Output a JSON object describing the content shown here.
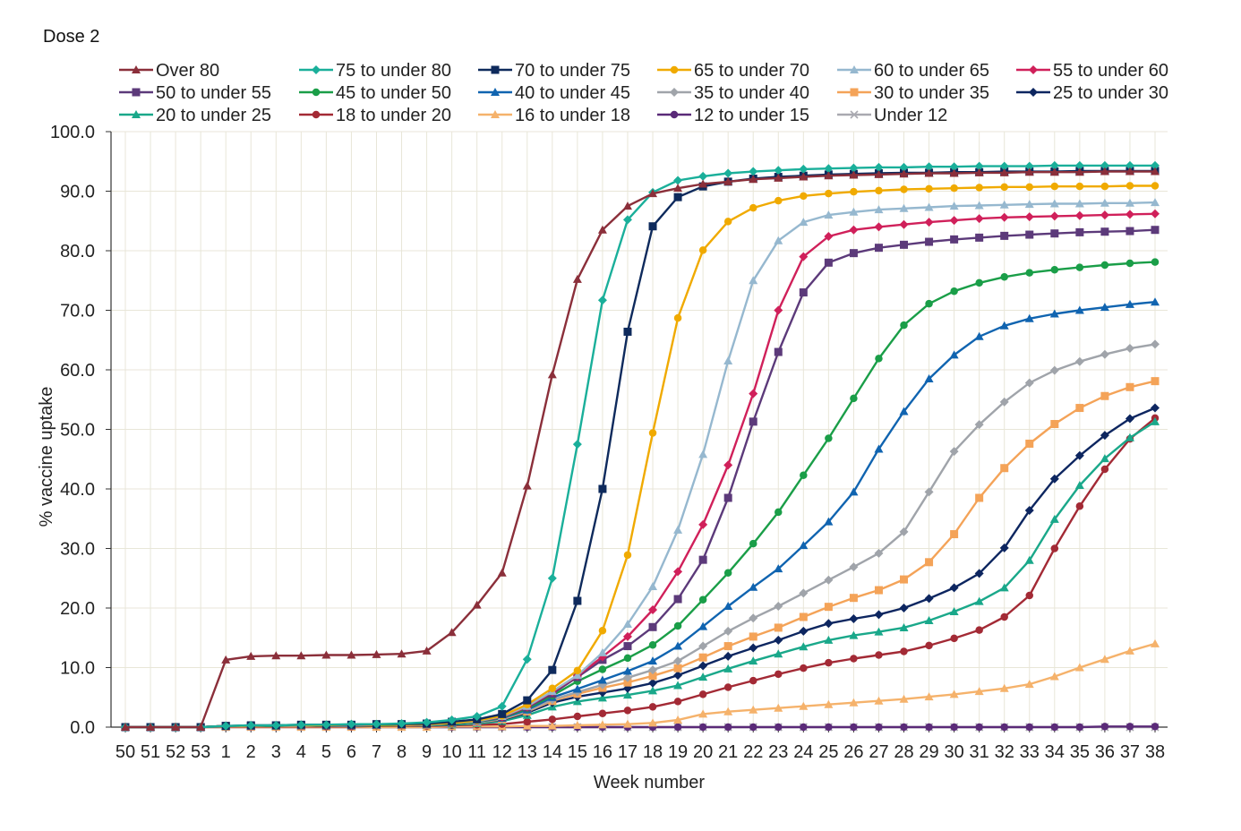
{
  "chart_data": {
    "type": "line",
    "title": "Dose 2",
    "xlabel": "Week number",
    "ylabel": "% vaccine uptake",
    "ylim": [
      0,
      100
    ],
    "yticks": [
      "0.0",
      "10.0",
      "20.0",
      "30.0",
      "40.0",
      "50.0",
      "60.0",
      "70.0",
      "80.0",
      "90.0",
      "100.0"
    ],
    "grid": true,
    "legend_position": "top",
    "categories": [
      "50",
      "51",
      "52",
      "53",
      "1",
      "2",
      "3",
      "4",
      "5",
      "6",
      "7",
      "8",
      "9",
      "10",
      "11",
      "12",
      "13",
      "14",
      "15",
      "16",
      "17",
      "18",
      "19",
      "20",
      "21",
      "22",
      "23",
      "24",
      "25",
      "26",
      "27",
      "28",
      "29",
      "30",
      "31",
      "32",
      "33",
      "34",
      "35",
      "36",
      "37",
      "38"
    ],
    "series": [
      {
        "name": "Over 80",
        "color": "#8b2f3a",
        "marker": "triangle",
        "values": [
          0,
          0,
          0,
          0,
          11.3,
          11.9,
          12.0,
          12.0,
          12.1,
          12.1,
          12.2,
          12.3,
          12.8,
          15.9,
          20.5,
          25.9,
          40.5,
          59.2,
          75.2,
          83.5,
          87.5,
          89.6,
          90.5,
          91.2,
          91.6,
          92.0,
          92.2,
          92.4,
          92.6,
          92.7,
          92.8,
          92.9,
          93.0,
          93.0,
          93.1,
          93.1,
          93.2,
          93.2,
          93.2,
          93.3,
          93.3,
          93.3
        ]
      },
      {
        "name": "75 to under 80",
        "color": "#1aaf9a",
        "marker": "diamond",
        "values": [
          0,
          0,
          0,
          0,
          0.2,
          0.3,
          0.3,
          0.4,
          0.4,
          0.5,
          0.5,
          0.6,
          0.8,
          1.2,
          1.8,
          3.5,
          11.4,
          25.0,
          47.5,
          71.7,
          85.2,
          89.8,
          91.8,
          92.5,
          93.0,
          93.3,
          93.5,
          93.7,
          93.8,
          93.9,
          94.0,
          94.0,
          94.1,
          94.1,
          94.2,
          94.2,
          94.2,
          94.3,
          94.3,
          94.3,
          94.3,
          94.3
        ]
      },
      {
        "name": "70 to under 75",
        "color": "#0e2a5c",
        "marker": "square",
        "values": [
          0,
          0,
          0,
          0,
          0.2,
          0.3,
          0.3,
          0.4,
          0.4,
          0.4,
          0.5,
          0.5,
          0.6,
          0.9,
          1.3,
          2.2,
          4.5,
          9.6,
          21.2,
          40.0,
          66.4,
          84.1,
          89.0,
          90.8,
          91.6,
          92.1,
          92.4,
          92.6,
          92.8,
          92.9,
          93.0,
          93.1,
          93.1,
          93.2,
          93.2,
          93.3,
          93.3,
          93.3,
          93.4,
          93.4,
          93.4,
          93.4
        ]
      },
      {
        "name": "65 to under 70",
        "color": "#f0aa00",
        "marker": "circle",
        "values": [
          0,
          0,
          0,
          0,
          0.2,
          0.2,
          0.3,
          0.3,
          0.3,
          0.4,
          0.4,
          0.4,
          0.5,
          0.7,
          1.1,
          1.9,
          3.8,
          6.5,
          9.5,
          16.2,
          28.9,
          49.4,
          68.7,
          80.1,
          84.9,
          87.2,
          88.4,
          89.2,
          89.6,
          89.9,
          90.1,
          90.3,
          90.4,
          90.5,
          90.6,
          90.7,
          90.7,
          90.8,
          90.8,
          90.8,
          90.9,
          90.9
        ]
      },
      {
        "name": "60 to under 65",
        "color": "#96b8cf",
        "marker": "triangle",
        "values": [
          0,
          0,
          0,
          0,
          0.2,
          0.2,
          0.3,
          0.3,
          0.3,
          0.3,
          0.4,
          0.4,
          0.5,
          0.7,
          1.0,
          1.8,
          3.5,
          6.0,
          8.7,
          12.5,
          17.3,
          23.6,
          33.1,
          45.8,
          61.5,
          75.0,
          81.7,
          84.8,
          86.0,
          86.5,
          86.9,
          87.1,
          87.3,
          87.5,
          87.6,
          87.7,
          87.8,
          87.9,
          87.9,
          88.0,
          88.0,
          88.1
        ]
      },
      {
        "name": "55 to under 60",
        "color": "#d0205a",
        "marker": "diamond",
        "values": [
          0,
          0,
          0,
          0,
          0.2,
          0.2,
          0.3,
          0.3,
          0.3,
          0.3,
          0.4,
          0.4,
          0.5,
          0.7,
          1.0,
          1.7,
          3.4,
          5.9,
          8.6,
          11.8,
          15.2,
          19.7,
          26.1,
          34.0,
          44.0,
          56.0,
          70.0,
          79.0,
          82.4,
          83.5,
          84.0,
          84.4,
          84.8,
          85.1,
          85.4,
          85.6,
          85.7,
          85.8,
          85.9,
          86.0,
          86.1,
          86.2
        ]
      },
      {
        "name": "50 to under 55",
        "color": "#5c3a7a",
        "marker": "square",
        "values": [
          0,
          0,
          0,
          0,
          0.2,
          0.2,
          0.3,
          0.3,
          0.3,
          0.3,
          0.4,
          0.4,
          0.5,
          0.7,
          1.0,
          1.7,
          3.3,
          5.6,
          8.4,
          11.3,
          13.6,
          16.8,
          21.5,
          28.1,
          38.5,
          51.3,
          63.0,
          73.0,
          78.0,
          79.6,
          80.5,
          81.0,
          81.5,
          81.9,
          82.2,
          82.5,
          82.7,
          82.9,
          83.1,
          83.2,
          83.3,
          83.5
        ]
      },
      {
        "name": "45 to under 50",
        "color": "#1a9e48",
        "marker": "circle",
        "values": [
          0,
          0,
          0,
          0,
          0.2,
          0.2,
          0.2,
          0.3,
          0.3,
          0.3,
          0.3,
          0.4,
          0.5,
          0.6,
          0.9,
          1.6,
          3.1,
          5.3,
          7.7,
          9.7,
          11.6,
          13.8,
          17.0,
          21.4,
          25.9,
          30.8,
          36.1,
          42.3,
          48.5,
          55.2,
          61.9,
          67.5,
          71.1,
          73.2,
          74.6,
          75.6,
          76.3,
          76.8,
          77.2,
          77.6,
          77.9,
          78.1
        ]
      },
      {
        "name": "40 to under 45",
        "color": "#1064b0",
        "marker": "triangle",
        "values": [
          0,
          0,
          0,
          0,
          0.2,
          0.2,
          0.2,
          0.3,
          0.3,
          0.3,
          0.3,
          0.4,
          0.5,
          0.6,
          0.9,
          1.5,
          2.9,
          5.0,
          6.4,
          7.9,
          9.4,
          11.1,
          13.6,
          16.9,
          20.3,
          23.5,
          26.6,
          30.5,
          34.5,
          39.5,
          46.7,
          53.0,
          58.5,
          62.5,
          65.6,
          67.4,
          68.6,
          69.4,
          70.0,
          70.5,
          71.0,
          71.4
        ]
      },
      {
        "name": "35 to under 40",
        "color": "#a0a4aa",
        "marker": "diamond",
        "values": [
          0,
          0,
          0,
          0,
          0.2,
          0.2,
          0.2,
          0.2,
          0.3,
          0.3,
          0.3,
          0.4,
          0.4,
          0.6,
          0.8,
          1.4,
          2.7,
          4.6,
          5.9,
          7.1,
          8.3,
          9.6,
          11.1,
          13.6,
          16.1,
          18.3,
          20.3,
          22.5,
          24.7,
          26.9,
          29.2,
          32.8,
          39.5,
          46.3,
          50.8,
          54.6,
          57.8,
          59.9,
          61.4,
          62.6,
          63.6,
          64.3
        ]
      },
      {
        "name": "30 to under 35",
        "color": "#f4a358",
        "marker": "square",
        "values": [
          0,
          0,
          0,
          0,
          0.2,
          0.2,
          0.2,
          0.2,
          0.3,
          0.3,
          0.3,
          0.3,
          0.4,
          0.6,
          0.8,
          1.3,
          2.6,
          4.4,
          5.6,
          6.6,
          7.5,
          8.6,
          9.9,
          11.7,
          13.6,
          15.2,
          16.7,
          18.5,
          20.2,
          21.7,
          23.0,
          24.8,
          27.7,
          32.4,
          38.5,
          43.5,
          47.6,
          50.9,
          53.6,
          55.6,
          57.1,
          58.1
        ]
      },
      {
        "name": "25 to under 30",
        "color": "#0d2660",
        "marker": "diamond",
        "values": [
          0,
          0,
          0,
          0,
          0.2,
          0.2,
          0.2,
          0.2,
          0.2,
          0.3,
          0.3,
          0.3,
          0.4,
          0.5,
          0.8,
          1.2,
          2.4,
          4.1,
          5.1,
          5.8,
          6.5,
          7.4,
          8.7,
          10.3,
          11.9,
          13.3,
          14.6,
          16.1,
          17.4,
          18.2,
          18.9,
          20.0,
          21.6,
          23.4,
          25.8,
          30.1,
          36.4,
          41.7,
          45.6,
          49.0,
          51.8,
          53.6
        ]
      },
      {
        "name": "20 to under 25",
        "color": "#1aa88a",
        "marker": "triangle",
        "values": [
          0,
          0,
          0,
          0,
          0.2,
          0.2,
          0.2,
          0.2,
          0.2,
          0.2,
          0.3,
          0.3,
          0.3,
          0.4,
          0.6,
          1.0,
          2.0,
          3.4,
          4.3,
          4.9,
          5.4,
          6.1,
          7.0,
          8.4,
          9.8,
          11.1,
          12.3,
          13.5,
          14.6,
          15.4,
          16.0,
          16.7,
          17.9,
          19.4,
          21.1,
          23.4,
          28.0,
          34.9,
          40.6,
          45.1,
          48.6,
          51.3
        ]
      },
      {
        "name": "18 to under 20",
        "color": "#a32a35",
        "marker": "circle",
        "values": [
          0,
          0,
          0,
          0,
          0.1,
          0.1,
          0.1,
          0.1,
          0.1,
          0.1,
          0.2,
          0.2,
          0.2,
          0.3,
          0.4,
          0.5,
          0.9,
          1.3,
          1.8,
          2.3,
          2.8,
          3.4,
          4.3,
          5.5,
          6.7,
          7.8,
          8.9,
          9.9,
          10.8,
          11.5,
          12.1,
          12.7,
          13.7,
          14.9,
          16.3,
          18.5,
          22.1,
          30.0,
          37.1,
          43.3,
          48.4,
          51.9
        ]
      },
      {
        "name": "16 to under 18",
        "color": "#f5b26b",
        "marker": "triangle",
        "values": [
          0,
          0,
          0,
          0,
          0,
          0,
          0,
          0,
          0,
          0,
          0,
          0,
          0,
          0.1,
          0.1,
          0.1,
          0.2,
          0.2,
          0.3,
          0.4,
          0.5,
          0.7,
          1.2,
          2.2,
          2.6,
          2.9,
          3.2,
          3.5,
          3.8,
          4.1,
          4.4,
          4.7,
          5.1,
          5.5,
          6.0,
          6.5,
          7.2,
          8.5,
          10.0,
          11.4,
          12.8,
          14.0
        ]
      },
      {
        "name": "12 to under 15",
        "color": "#5a2a78",
        "marker": "circle",
        "values": [
          0,
          0,
          0,
          0,
          0,
          0,
          0,
          0,
          0,
          0,
          0,
          0,
          0,
          0,
          0,
          0,
          0,
          0,
          0,
          0,
          0,
          0,
          0,
          0,
          0,
          0,
          0,
          0,
          0,
          0,
          0,
          0,
          0,
          0,
          0,
          0,
          0,
          0,
          0,
          0.1,
          0.1,
          0.1
        ]
      },
      {
        "name": "Under 12",
        "color": "#a9a9b0",
        "marker": "x",
        "values": [
          0,
          0,
          0,
          0,
          0,
          0,
          0,
          0,
          0,
          0,
          0,
          0,
          0,
          0,
          0,
          0,
          0,
          0,
          0,
          0,
          0,
          0,
          0,
          0,
          0,
          0,
          0,
          0,
          0,
          0,
          0,
          0,
          0,
          0,
          0,
          0,
          0,
          0,
          0,
          0,
          0,
          0
        ]
      }
    ]
  }
}
